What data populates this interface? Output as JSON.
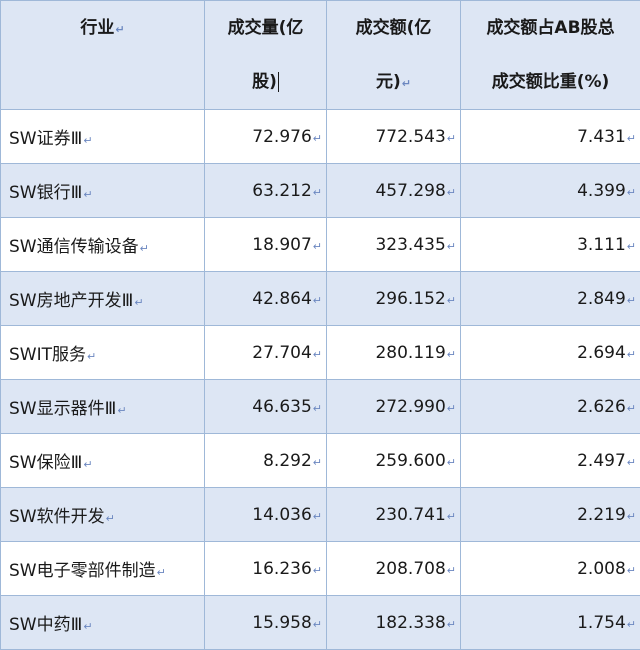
{
  "table": {
    "headers": [
      {
        "line1": "行业",
        "line2": ""
      },
      {
        "line1": "成交量(亿",
        "line2": "股)"
      },
      {
        "line1": "成交额(亿",
        "line2": "元)"
      },
      {
        "line1": "成交额占AB股总",
        "line2": "成交额比重(%)"
      }
    ],
    "para_mark": "↵",
    "rows": [
      {
        "industry": "SW证券Ⅲ",
        "volume": "72.976",
        "amount": "772.543",
        "share": "7.431"
      },
      {
        "industry": "SW银行Ⅲ",
        "volume": "63.212",
        "amount": "457.298",
        "share": "4.399"
      },
      {
        "industry": "SW通信传输设备",
        "volume": "18.907",
        "amount": "323.435",
        "share": "3.111"
      },
      {
        "industry": "SW房地产开发Ⅲ",
        "volume": "42.864",
        "amount": "296.152",
        "share": "2.849"
      },
      {
        "industry": "SWIT服务",
        "volume": "27.704",
        "amount": "280.119",
        "share": "2.694"
      },
      {
        "industry": "SW显示器件Ⅲ",
        "volume": "46.635",
        "amount": "272.990",
        "share": "2.626"
      },
      {
        "industry": "SW保险Ⅲ",
        "volume": "8.292",
        "amount": "259.600",
        "share": "2.497"
      },
      {
        "industry": "SW软件开发",
        "volume": "14.036",
        "amount": "230.741",
        "share": "2.219"
      },
      {
        "industry": "SW电子零部件制造",
        "volume": "16.236",
        "amount": "208.708",
        "share": "2.008"
      },
      {
        "industry": "SW中药Ⅲ",
        "volume": "15.958",
        "amount": "182.338",
        "share": "1.754"
      }
    ]
  }
}
